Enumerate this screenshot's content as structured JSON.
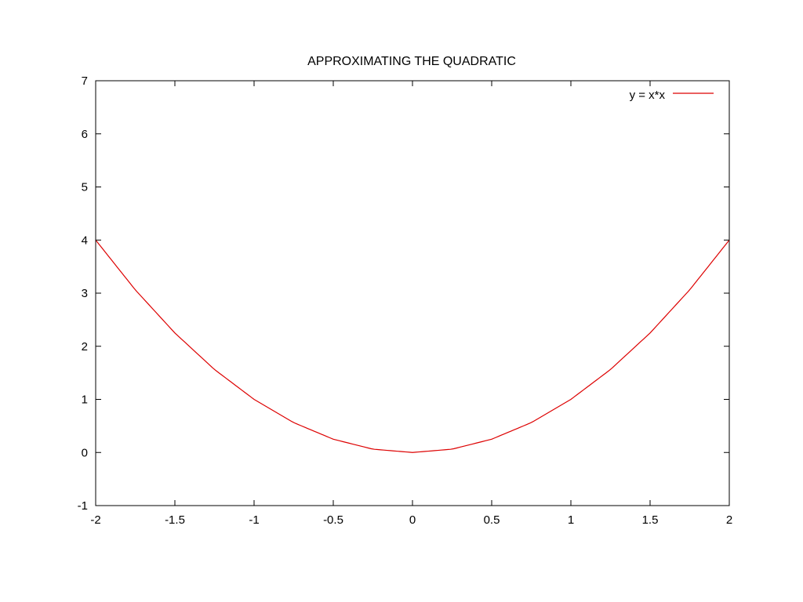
{
  "chart_data": {
    "type": "line",
    "title": "APPROXIMATING THE QUADRATIC",
    "xlabel": "",
    "ylabel": "",
    "xlim": [
      -2,
      2
    ],
    "ylim": [
      -1,
      7
    ],
    "xticks": [
      -2,
      -1.5,
      -1,
      -0.5,
      0,
      0.5,
      1,
      1.5,
      2
    ],
    "yticks": [
      -1,
      0,
      1,
      2,
      3,
      4,
      5,
      6,
      7
    ],
    "grid": false,
    "legend_position": "top-right",
    "series": [
      {
        "name": "y = x*x",
        "color": "#dd0000",
        "x": [
          -2,
          -1.75,
          -1.5,
          -1.25,
          -1,
          -0.75,
          -0.5,
          -0.25,
          0,
          0.25,
          0.5,
          0.75,
          1,
          1.25,
          1.5,
          1.75,
          2
        ],
        "y": [
          4,
          3.0625,
          2.25,
          1.5625,
          1,
          0.5625,
          0.25,
          0.0625,
          0,
          0.0625,
          0.25,
          0.5625,
          1,
          1.5625,
          2.25,
          3.0625,
          4
        ]
      }
    ]
  }
}
